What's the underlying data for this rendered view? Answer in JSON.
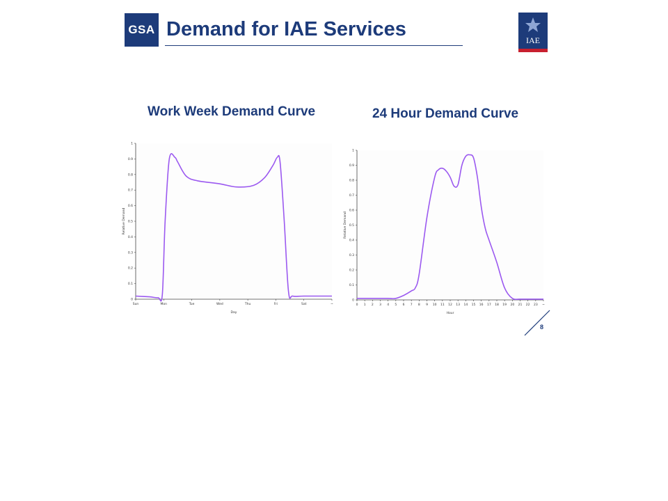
{
  "header": {
    "logo_text": "GSA",
    "title": "Demand for IAE Services",
    "right_logo_text": "IAE",
    "brand_color": "#1d3b7a",
    "accent_color": "#c8202f"
  },
  "page_number": "8",
  "chart_data": [
    {
      "type": "line",
      "title": "Work Week Demand Curve",
      "xlabel": "Day",
      "ylabel": "Relative Demand",
      "x_ticks": [
        "Sun",
        "Mon",
        "Tue",
        "Wed",
        "Thu",
        "Fri",
        "Sat",
        "~"
      ],
      "y_ticks": [
        "0",
        "0.1",
        "0.2",
        "0.3",
        "0.4",
        "0.5",
        "0.6",
        "0.7",
        "0.8",
        "0.9",
        "1"
      ],
      "xlim": [
        0,
        7
      ],
      "ylim": [
        0,
        1
      ],
      "grid": false,
      "series": [
        {
          "color": "#9b59f0",
          "x": [
            0,
            0.5,
            0.8,
            0.95,
            1.05,
            1.2,
            1.4,
            1.5,
            1.8,
            2.2,
            3.0,
            3.6,
            4.2,
            4.6,
            4.9,
            5.05,
            5.15,
            5.3,
            5.45,
            5.6,
            6.0,
            7.0
          ],
          "y": [
            0.02,
            0.015,
            0.01,
            0.03,
            0.5,
            0.9,
            0.91,
            0.88,
            0.79,
            0.76,
            0.74,
            0.72,
            0.73,
            0.78,
            0.86,
            0.91,
            0.88,
            0.5,
            0.05,
            0.02,
            0.02,
            0.02
          ]
        }
      ]
    },
    {
      "type": "line",
      "title": "24 Hour Demand Curve",
      "xlabel": "Hour",
      "ylabel": "Relative Demand",
      "x_ticks": [
        "0",
        "1",
        "2",
        "3",
        "4",
        "5",
        "6",
        "7",
        "8",
        "9",
        "10",
        "11",
        "12",
        "13",
        "14",
        "15",
        "16",
        "17",
        "18",
        "19",
        "20",
        "21",
        "22",
        "23",
        "~"
      ],
      "y_ticks": [
        "0",
        "0.1",
        "0.2",
        "0.3",
        "0.4",
        "0.5",
        "0.6",
        "0.7",
        "0.8",
        "0.9",
        "1"
      ],
      "xlim": [
        0,
        24
      ],
      "ylim": [
        0,
        1
      ],
      "grid": false,
      "series": [
        {
          "color": "#9b59f0",
          "x": [
            0,
            2,
            4,
            5,
            6,
            7,
            7.5,
            8,
            9,
            10,
            10.5,
            11,
            11.5,
            12,
            12.5,
            13,
            13.5,
            14,
            14.5,
            15,
            15.5,
            16,
            16.5,
            17,
            18,
            19,
            20,
            21,
            22,
            23,
            24
          ],
          "y": [
            0.01,
            0.01,
            0.01,
            0.01,
            0.03,
            0.06,
            0.08,
            0.17,
            0.55,
            0.82,
            0.87,
            0.88,
            0.86,
            0.82,
            0.76,
            0.77,
            0.9,
            0.96,
            0.97,
            0.95,
            0.82,
            0.62,
            0.48,
            0.4,
            0.25,
            0.08,
            0.01,
            0.005,
            0.005,
            0.005,
            0.005
          ]
        }
      ]
    }
  ]
}
